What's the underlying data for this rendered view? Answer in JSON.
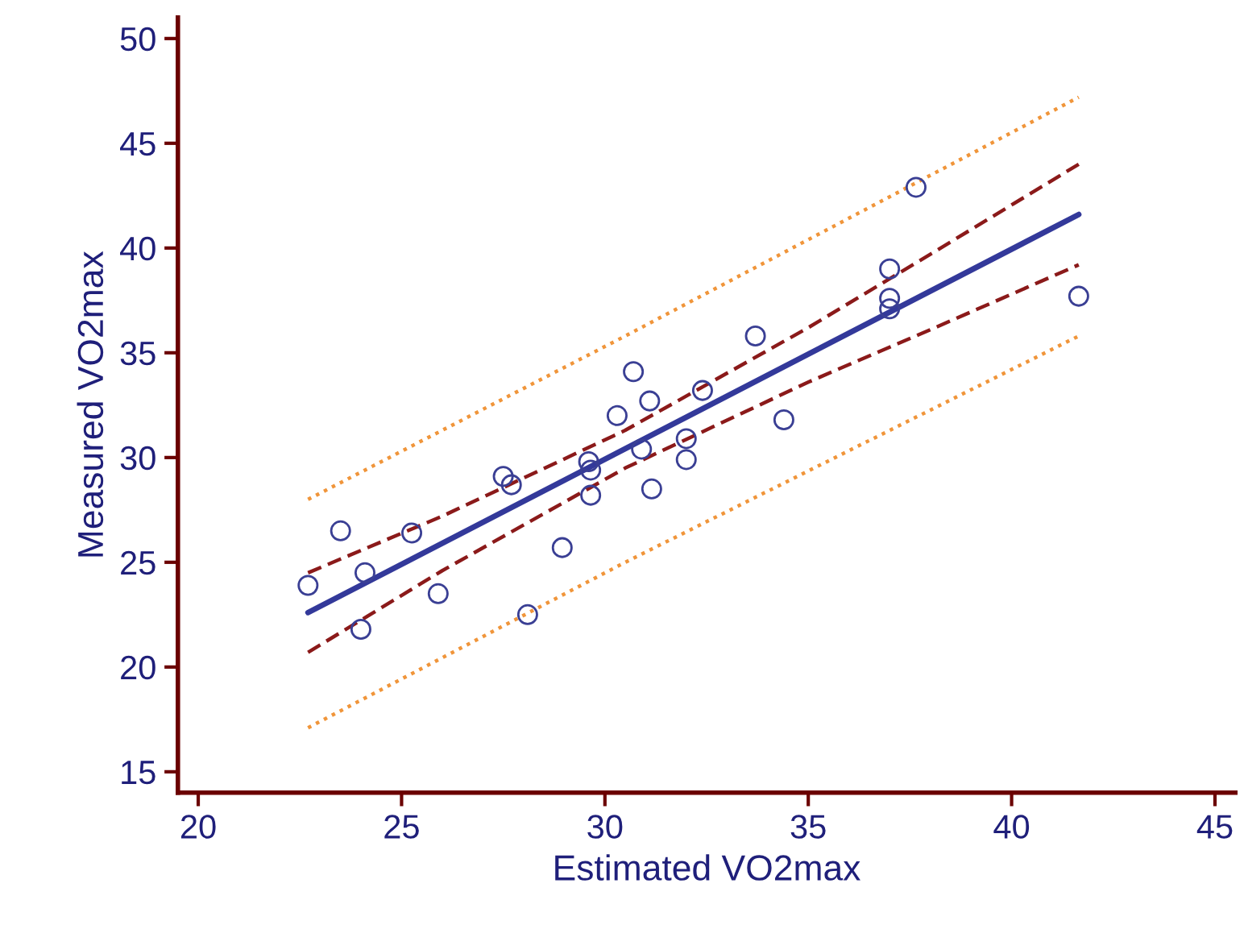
{
  "chart_data": {
    "type": "scatter",
    "xlabel": "Estimated VO2max",
    "ylabel": "Measured VO2max",
    "xlim": [
      19.5,
      45.5
    ],
    "ylim": [
      14,
      51
    ],
    "xticks": [
      20,
      25,
      30,
      35,
      40,
      45
    ],
    "yticks": [
      15,
      20,
      25,
      30,
      35,
      40,
      45,
      50
    ],
    "grid": false,
    "legend": false,
    "series": [
      {
        "type": "line",
        "color": "#f0953a",
        "line_style": "dotted",
        "x": [
          22.7,
          30.5,
          41.65
        ],
        "values": [
          28.0,
          35.8,
          47.2
        ]
      },
      {
        "type": "line",
        "color": "#f0953a",
        "line_style": "dotted",
        "x": [
          22.7,
          30.5,
          41.65
        ],
        "values": [
          17.1,
          25.0,
          35.8
        ]
      },
      {
        "type": "line",
        "color": "#8b1a1a",
        "line_style": "dashed",
        "x": [
          22.7,
          26,
          30.5,
          35,
          38,
          41.65
        ],
        "values": [
          24.5,
          27.2,
          31.3,
          36.2,
          39.7,
          44.0
        ]
      },
      {
        "type": "line",
        "color": "#8b1a1a",
        "line_style": "dashed",
        "x": [
          22.7,
          26,
          30.5,
          35,
          38,
          41.65
        ],
        "values": [
          20.7,
          24.6,
          29.5,
          33.6,
          36.1,
          39.2
        ]
      },
      {
        "type": "line",
        "color": "#33399a",
        "line_style": "solid",
        "x": [
          22.7,
          41.65
        ],
        "values": [
          22.6,
          41.6
        ]
      },
      {
        "color": "#3a3f94",
        "marker": "circle",
        "x": [
          22.7,
          23.5,
          24.1,
          24.0,
          25.25,
          25.9,
          27.5,
          27.7,
          28.1,
          28.95,
          29.6,
          29.65,
          29.65,
          30.3,
          30.7,
          30.9,
          31.1,
          31.15,
          32.0,
          32.0,
          32.4,
          33.7,
          34.4,
          37.0,
          37.0,
          37.0,
          37.65,
          41.65
        ],
        "values": [
          23.9,
          26.5,
          24.5,
          21.8,
          26.4,
          23.5,
          29.1,
          28.7,
          22.5,
          25.7,
          29.8,
          29.4,
          28.2,
          32.0,
          34.1,
          30.4,
          32.7,
          28.5,
          30.9,
          29.9,
          33.2,
          35.8,
          31.8,
          39.0,
          37.6,
          37.1,
          42.9,
          37.7
        ]
      }
    ]
  }
}
